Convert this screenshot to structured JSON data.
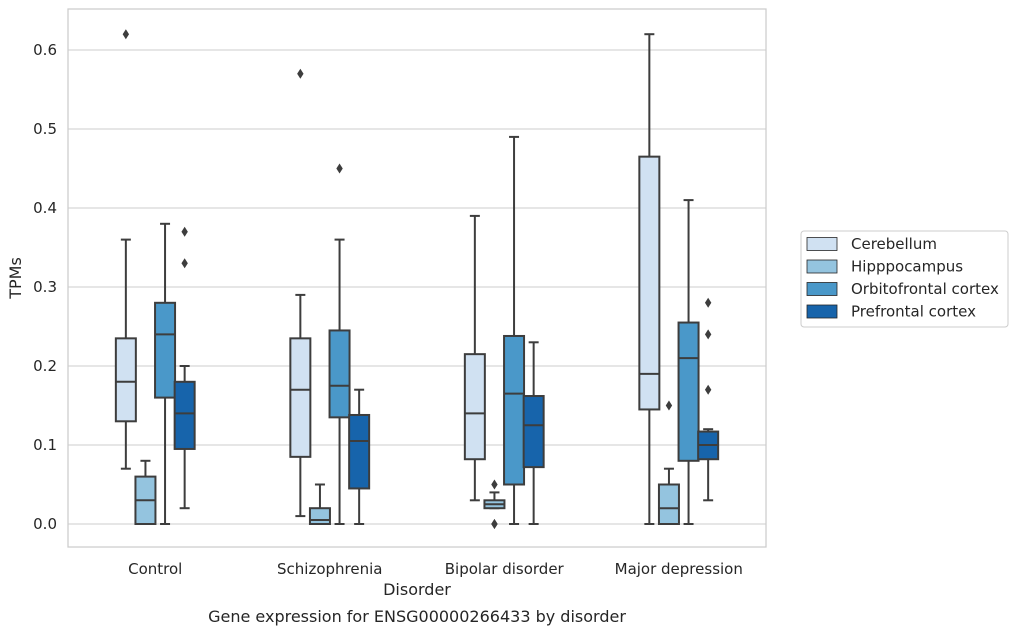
{
  "chart_data": {
    "type": "box",
    "caption": "Gene expression for ENSG00000266433 by disorder",
    "xlabel": "Disorder",
    "ylabel": "TPMs",
    "ylim": [
      -0.03,
      0.655
    ],
    "yticks": [
      0.0,
      0.1,
      0.2,
      0.3,
      0.4,
      0.5,
      0.6
    ],
    "ytick_labels": [
      "0.0",
      "0.1",
      "0.2",
      "0.3",
      "0.4",
      "0.5",
      "0.6"
    ],
    "grid": "horizontal",
    "legend_placement": "right",
    "categories": [
      "Control",
      "Schizophrenia",
      "Bipolar disorder",
      "Major depression"
    ],
    "series": [
      {
        "name": "Cerebellum",
        "color": "#d0e1f2",
        "boxes": [
          {
            "whislo": 0.07,
            "q1": 0.13,
            "med": 0.18,
            "q3": 0.235,
            "whishi": 0.36,
            "fliers": [
              0.62
            ]
          },
          {
            "whislo": 0.01,
            "q1": 0.085,
            "med": 0.17,
            "q3": 0.235,
            "whishi": 0.29,
            "fliers": [
              0.57
            ]
          },
          {
            "whislo": 0.03,
            "q1": 0.082,
            "med": 0.14,
            "q3": 0.215,
            "whishi": 0.39,
            "fliers": []
          },
          {
            "whislo": 0.0,
            "q1": 0.145,
            "med": 0.19,
            "q3": 0.465,
            "whishi": 0.62,
            "fliers": []
          }
        ]
      },
      {
        "name": "Hipppocampus",
        "color": "#94c4df",
        "boxes": [
          {
            "whislo": 0.0,
            "q1": 0.0,
            "med": 0.03,
            "q3": 0.06,
            "whishi": 0.08,
            "fliers": []
          },
          {
            "whislo": 0.0,
            "q1": 0.0,
            "med": 0.005,
            "q3": 0.02,
            "whishi": 0.05,
            "fliers": []
          },
          {
            "whislo": 0.02,
            "q1": 0.02,
            "med": 0.025,
            "q3": 0.03,
            "whishi": 0.04,
            "fliers": [
              0.05,
              0.0,
              0.0
            ]
          },
          {
            "whislo": 0.0,
            "q1": 0.0,
            "med": 0.02,
            "q3": 0.05,
            "whishi": 0.07,
            "fliers": [
              0.15
            ]
          }
        ]
      },
      {
        "name": "Orbitofrontal cortex",
        "color": "#4a98c9",
        "boxes": [
          {
            "whislo": 0.0,
            "q1": 0.16,
            "med": 0.24,
            "q3": 0.28,
            "whishi": 0.38,
            "fliers": []
          },
          {
            "whislo": 0.0,
            "q1": 0.135,
            "med": 0.175,
            "q3": 0.245,
            "whishi": 0.36,
            "fliers": [
              0.45
            ]
          },
          {
            "whislo": 0.0,
            "q1": 0.05,
            "med": 0.165,
            "q3": 0.238,
            "whishi": 0.49,
            "fliers": []
          },
          {
            "whislo": 0.0,
            "q1": 0.08,
            "med": 0.21,
            "q3": 0.255,
            "whishi": 0.41,
            "fliers": []
          }
        ]
      },
      {
        "name": "Prefrontal cortex",
        "color": "#1764ab",
        "boxes": [
          {
            "whislo": 0.02,
            "q1": 0.095,
            "med": 0.14,
            "q3": 0.18,
            "whishi": 0.2,
            "fliers": [
              0.37,
              0.33
            ]
          },
          {
            "whislo": 0.0,
            "q1": 0.045,
            "med": 0.105,
            "q3": 0.138,
            "whishi": 0.17,
            "fliers": []
          },
          {
            "whislo": 0.0,
            "q1": 0.072,
            "med": 0.125,
            "q3": 0.162,
            "whishi": 0.23,
            "fliers": []
          },
          {
            "whislo": 0.03,
            "q1": 0.082,
            "med": 0.1,
            "q3": 0.117,
            "whishi": 0.12,
            "fliers": [
              0.28,
              0.24,
              0.17
            ]
          }
        ]
      }
    ]
  }
}
